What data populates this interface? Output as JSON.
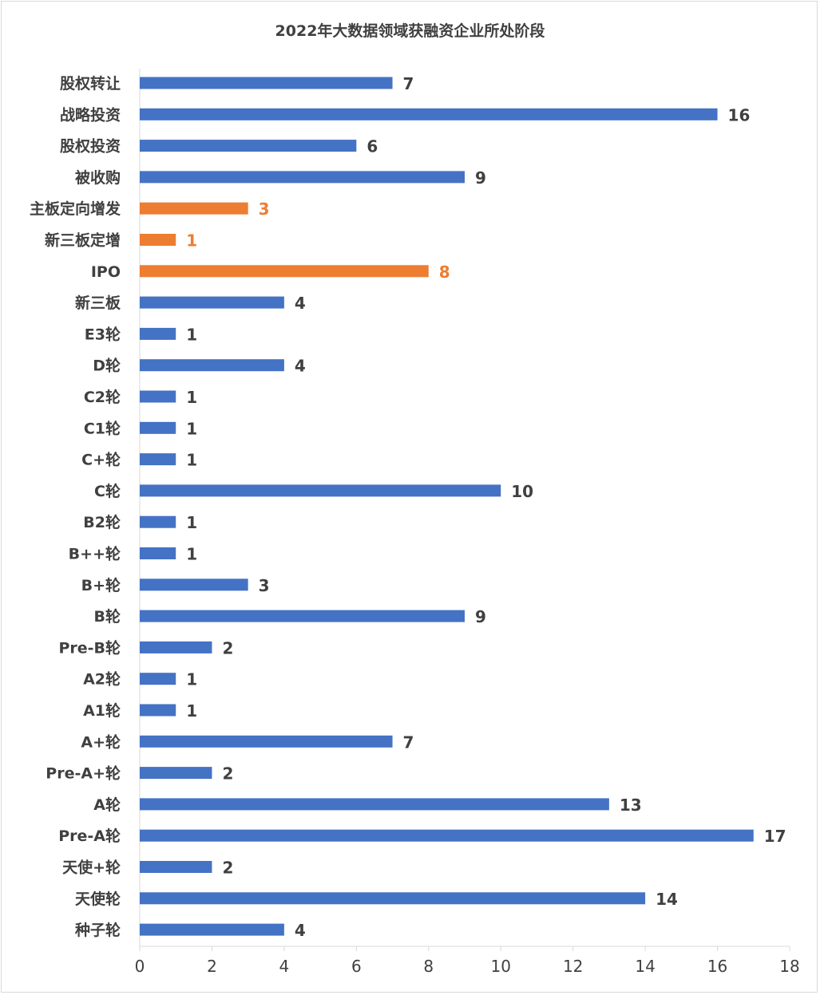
{
  "chart_data": {
    "type": "bar",
    "orientation": "horizontal",
    "title": "2022年大数据领域获融资企业所处阶段",
    "xlabel": "",
    "ylabel": "",
    "xlim": [
      0,
      18
    ],
    "x_ticks": [
      0,
      2,
      4,
      6,
      8,
      10,
      12,
      14,
      16,
      18
    ],
    "grid": false,
    "legend": "none",
    "colors": {
      "default": "#4472c4",
      "highlight": "#ed7d31",
      "value_default": "#404040"
    },
    "categories": [
      "股权转让",
      "战略投资",
      "股权投资",
      "被收购",
      "主板定向增发",
      "新三板定增",
      "IPO",
      "新三板",
      "E3轮",
      "D轮",
      "C2轮",
      "C1轮",
      "C+轮",
      "C轮",
      "B2轮",
      "B++轮",
      "B+轮",
      "B轮",
      "Pre-B轮",
      "A2轮",
      "A1轮",
      "A+轮",
      "Pre-A+轮",
      "A轮",
      "Pre-A轮",
      "天使+轮",
      "天使轮",
      "种子轮"
    ],
    "values": [
      7,
      16,
      6,
      9,
      3,
      1,
      8,
      4,
      1,
      4,
      1,
      1,
      1,
      10,
      1,
      1,
      3,
      9,
      2,
      1,
      1,
      7,
      2,
      13,
      17,
      2,
      14,
      4
    ],
    "highlighted": [
      "主板定向增发",
      "新三板定增",
      "IPO"
    ]
  }
}
